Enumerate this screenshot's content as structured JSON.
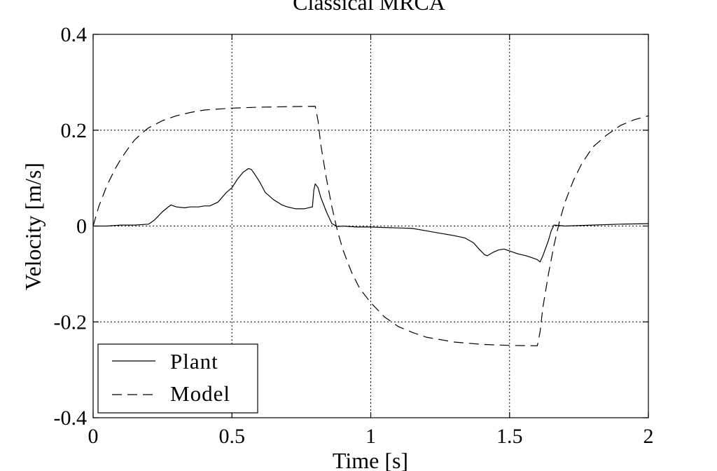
{
  "chart_data": {
    "type": "line",
    "title": "Classical MRCA",
    "xlabel": "Time [s]",
    "ylabel": "Velocity [m/s]",
    "xlim": [
      0,
      2
    ],
    "ylim": [
      -0.4,
      0.4
    ],
    "xticks": [
      0,
      0.5,
      1,
      1.5,
      2
    ],
    "xtick_labels": [
      "0",
      "0.5",
      "1",
      "1.5",
      "2"
    ],
    "yticks": [
      -0.4,
      -0.2,
      0,
      0.2,
      0.4
    ],
    "ytick_labels": [
      "-0.4",
      "-0.2",
      "0",
      "0.2",
      "0.4"
    ],
    "grid": true,
    "legend_position": "bottom-left",
    "series": [
      {
        "name": "Plant",
        "style": "solid",
        "color": "#000000",
        "x": [
          0,
          0.05,
          0.1,
          0.15,
          0.2,
          0.22,
          0.25,
          0.28,
          0.3,
          0.33,
          0.35,
          0.38,
          0.4,
          0.42,
          0.45,
          0.48,
          0.5,
          0.52,
          0.54,
          0.56,
          0.57,
          0.58,
          0.6,
          0.62,
          0.65,
          0.68,
          0.7,
          0.73,
          0.76,
          0.79,
          0.795,
          0.8,
          0.81,
          0.82,
          0.84,
          0.86,
          0.88,
          0.9,
          0.95,
          1.0,
          1.05,
          1.1,
          1.15,
          1.2,
          1.25,
          1.3,
          1.34,
          1.37,
          1.39,
          1.41,
          1.42,
          1.44,
          1.46,
          1.48,
          1.5,
          1.53,
          1.56,
          1.58,
          1.6,
          1.61,
          1.62,
          1.64,
          1.65,
          1.66,
          1.7,
          1.8,
          1.9,
          2.0
        ],
        "y": [
          0,
          0,
          0.002,
          0.002,
          0.004,
          0.012,
          0.03,
          0.044,
          0.04,
          0.038,
          0.04,
          0.04,
          0.042,
          0.042,
          0.05,
          0.07,
          0.08,
          0.098,
          0.112,
          0.12,
          0.118,
          0.11,
          0.092,
          0.07,
          0.055,
          0.044,
          0.04,
          0.036,
          0.036,
          0.04,
          0.075,
          0.088,
          0.08,
          0.06,
          0.03,
          0.005,
          -0.001,
          0,
          -0.002,
          -0.002,
          -0.003,
          -0.004,
          -0.005,
          -0.01,
          -0.015,
          -0.02,
          -0.025,
          -0.035,
          -0.048,
          -0.06,
          -0.062,
          -0.055,
          -0.05,
          -0.048,
          -0.052,
          -0.058,
          -0.062,
          -0.066,
          -0.07,
          -0.075,
          -0.062,
          -0.03,
          -0.01,
          0.002,
          0,
          0.002,
          0.004,
          0.005
        ]
      },
      {
        "name": "Model",
        "style": "dashed",
        "color": "#000000",
        "x": [
          0,
          0.02,
          0.05,
          0.08,
          0.1,
          0.13,
          0.15,
          0.18,
          0.2,
          0.25,
          0.3,
          0.35,
          0.4,
          0.5,
          0.6,
          0.7,
          0.8,
          0.81,
          0.82,
          0.84,
          0.86,
          0.88,
          0.9,
          0.93,
          0.96,
          1.0,
          1.05,
          1.1,
          1.15,
          1.2,
          1.3,
          1.4,
          1.5,
          1.6,
          1.61,
          1.62,
          1.64,
          1.66,
          1.68,
          1.7,
          1.73,
          1.76,
          1.8,
          1.85,
          1.9,
          1.95,
          2.0
        ],
        "y": [
          0,
          0.04,
          0.085,
          0.12,
          0.14,
          0.165,
          0.18,
          0.196,
          0.205,
          0.22,
          0.23,
          0.237,
          0.242,
          0.246,
          0.248,
          0.249,
          0.25,
          0.22,
          0.17,
          0.1,
          0.04,
          -0.01,
          -0.05,
          -0.095,
          -0.13,
          -0.16,
          -0.19,
          -0.21,
          -0.222,
          -0.232,
          -0.242,
          -0.247,
          -0.249,
          -0.25,
          -0.22,
          -0.17,
          -0.1,
          -0.04,
          0.01,
          0.05,
          0.095,
          0.13,
          0.165,
          0.19,
          0.21,
          0.222,
          0.23
        ]
      }
    ]
  }
}
